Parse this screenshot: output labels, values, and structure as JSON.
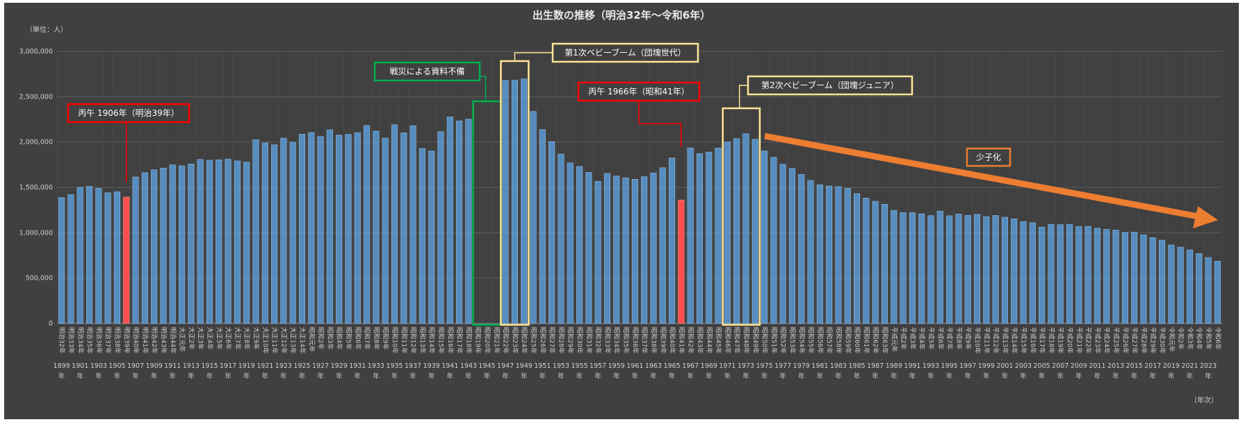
{
  "chart_data": {
    "type": "bar",
    "title": "出生数の推移（明治32年～令和6年）",
    "unit_label": "（単位：人）",
    "xlabel": "（年次）",
    "ylim": [
      0,
      3000000
    ],
    "yticks": [
      "0",
      "500,000",
      "1,000,000",
      "1,500,000",
      "2,000,000",
      "2,500,000",
      "3,000,000"
    ],
    "year_start": 1899,
    "year_end": 2024,
    "missing_years": [
      1944,
      1945,
      1946
    ],
    "highlight_years": [
      1906,
      1966
    ],
    "year_suffix": "年",
    "era_labels": [
      "明治32年",
      "明治33年",
      "明治34年",
      "明治35年",
      "明治36年",
      "明治37年",
      "明治38年",
      "明治39年",
      "明治40年",
      "明治41年",
      "明治42年",
      "明治43年",
      "明治44年",
      "大正元年",
      "大正2年",
      "大正3年",
      "大正4年",
      "大正5年",
      "大正6年",
      "大正7年",
      "大正8年",
      "大正9年",
      "大正10年",
      "大正11年",
      "大正12年",
      "大正13年",
      "大正14年",
      "昭和元年",
      "昭和2年",
      "昭和3年",
      "昭和4年",
      "昭和5年",
      "昭和6年",
      "昭和7年",
      "昭和8年",
      "昭和9年",
      "昭和10年",
      "昭和11年",
      "昭和12年",
      "昭和13年",
      "昭和14年",
      "昭和15年",
      "昭和16年",
      "昭和17年",
      "昭和18年",
      "昭和19年",
      "昭和20年",
      "昭和21年",
      "昭和22年",
      "昭和23年",
      "昭和24年",
      "昭和25年",
      "昭和26年",
      "昭和27年",
      "昭和28年",
      "昭和29年",
      "昭和30年",
      "昭和31年",
      "昭和32年",
      "昭和33年",
      "昭和34年",
      "昭和35年",
      "昭和36年",
      "昭和37年",
      "昭和38年",
      "昭和39年",
      "昭和40年",
      "昭和41年",
      "昭和42年",
      "昭和43年",
      "昭和44年",
      "昭和45年",
      "昭和46年",
      "昭和47年",
      "昭和48年",
      "昭和49年",
      "昭和50年",
      "昭和51年",
      "昭和52年",
      "昭和53年",
      "昭和54年",
      "昭和55年",
      "昭和56年",
      "昭和57年",
      "昭和58年",
      "昭和59年",
      "昭和60年",
      "昭和61年",
      "昭和62年",
      "昭和63年",
      "平成元年",
      "平成2年",
      "平成3年",
      "平成4年",
      "平成5年",
      "平成6年",
      "平成7年",
      "平成8年",
      "平成9年",
      "平成10年",
      "平成11年",
      "平成12年",
      "平成13年",
      "平成14年",
      "平成15年",
      "平成16年",
      "平成17年",
      "平成18年",
      "平成19年",
      "平成20年",
      "平成21年",
      "平成22年",
      "平成23年",
      "平成24年",
      "平成25年",
      "平成26年",
      "平成27年",
      "平成28年",
      "平成29年",
      "平成30年",
      "令和元年",
      "令和2年",
      "令和3年",
      "令和4年",
      "令和5年",
      "令和6年"
    ],
    "values": [
      1386981,
      1420534,
      1501591,
      1510835,
      1489816,
      1440371,
      1452770,
      1394295,
      1614472,
      1662535,
      1693850,
      1712857,
      1747803,
      1737674,
      1757441,
      1808402,
      1799326,
      1804822,
      1812413,
      1791992,
      1778685,
      2025564,
      1990876,
      1969314,
      2043297,
      1998520,
      2086091,
      2104405,
      2060737,
      2135852,
      2077026,
      2085101,
      2102784,
      2182742,
      2121253,
      2043783,
      2190704,
      2101969,
      2180734,
      1928321,
      1901573,
      2115867,
      2277283,
      2233660,
      2253535,
      null,
      null,
      null,
      2678792,
      2681624,
      2696638,
      2337507,
      2137689,
      2005162,
      1868040,
      1769580,
      1730692,
      1665278,
      1566713,
      1653469,
      1626088,
      1606041,
      1589372,
      1618616,
      1659521,
      1716761,
      1823697,
      1360974,
      1935647,
      1871839,
      1889815,
      1934239,
      2000973,
      2038682,
      2091983,
      2029989,
      1901440,
      1832617,
      1755100,
      1708643,
      1642580,
      1576889,
      1529455,
      1515392,
      1508687,
      1489780,
      1431577,
      1382946,
      1346658,
      1314006,
      1246802,
      1221585,
      1223245,
      1208989,
      1188282,
      1238328,
      1187064,
      1206555,
      1191665,
      1203147,
      1177669,
      1190547,
      1170662,
      1153855,
      1123610,
      1110721,
      1062530,
      1092674,
      1089818,
      1091156,
      1070036,
      1071304,
      1050806,
      1037231,
      1029817,
      1003539,
      1005721,
      977242,
      946146,
      918400,
      865239,
      840835,
      811622,
      770759,
      727288,
      686061
    ],
    "annotations": [
      {
        "text": "丙午 1906年（明治39年）",
        "style": "red"
      },
      {
        "text": "戦災による資料不備",
        "style": "green"
      },
      {
        "text": "第1次ベビーブーム（団塊世代）",
        "style": "yellow"
      },
      {
        "text": "丙午 1966年（昭和41年）",
        "style": "red"
      },
      {
        "text": "第2次ベビーブーム（団塊ジュニア）",
        "style": "yellow"
      },
      {
        "text": "少子化",
        "style": "orange"
      }
    ],
    "colors": {
      "bar": "#5b9bd5",
      "highlight": "#ff4d4d",
      "background": "#404040",
      "red": "#ff0000",
      "green": "#00b050",
      "yellow": "#ffe699",
      "orange": "#ed7d31"
    }
  }
}
